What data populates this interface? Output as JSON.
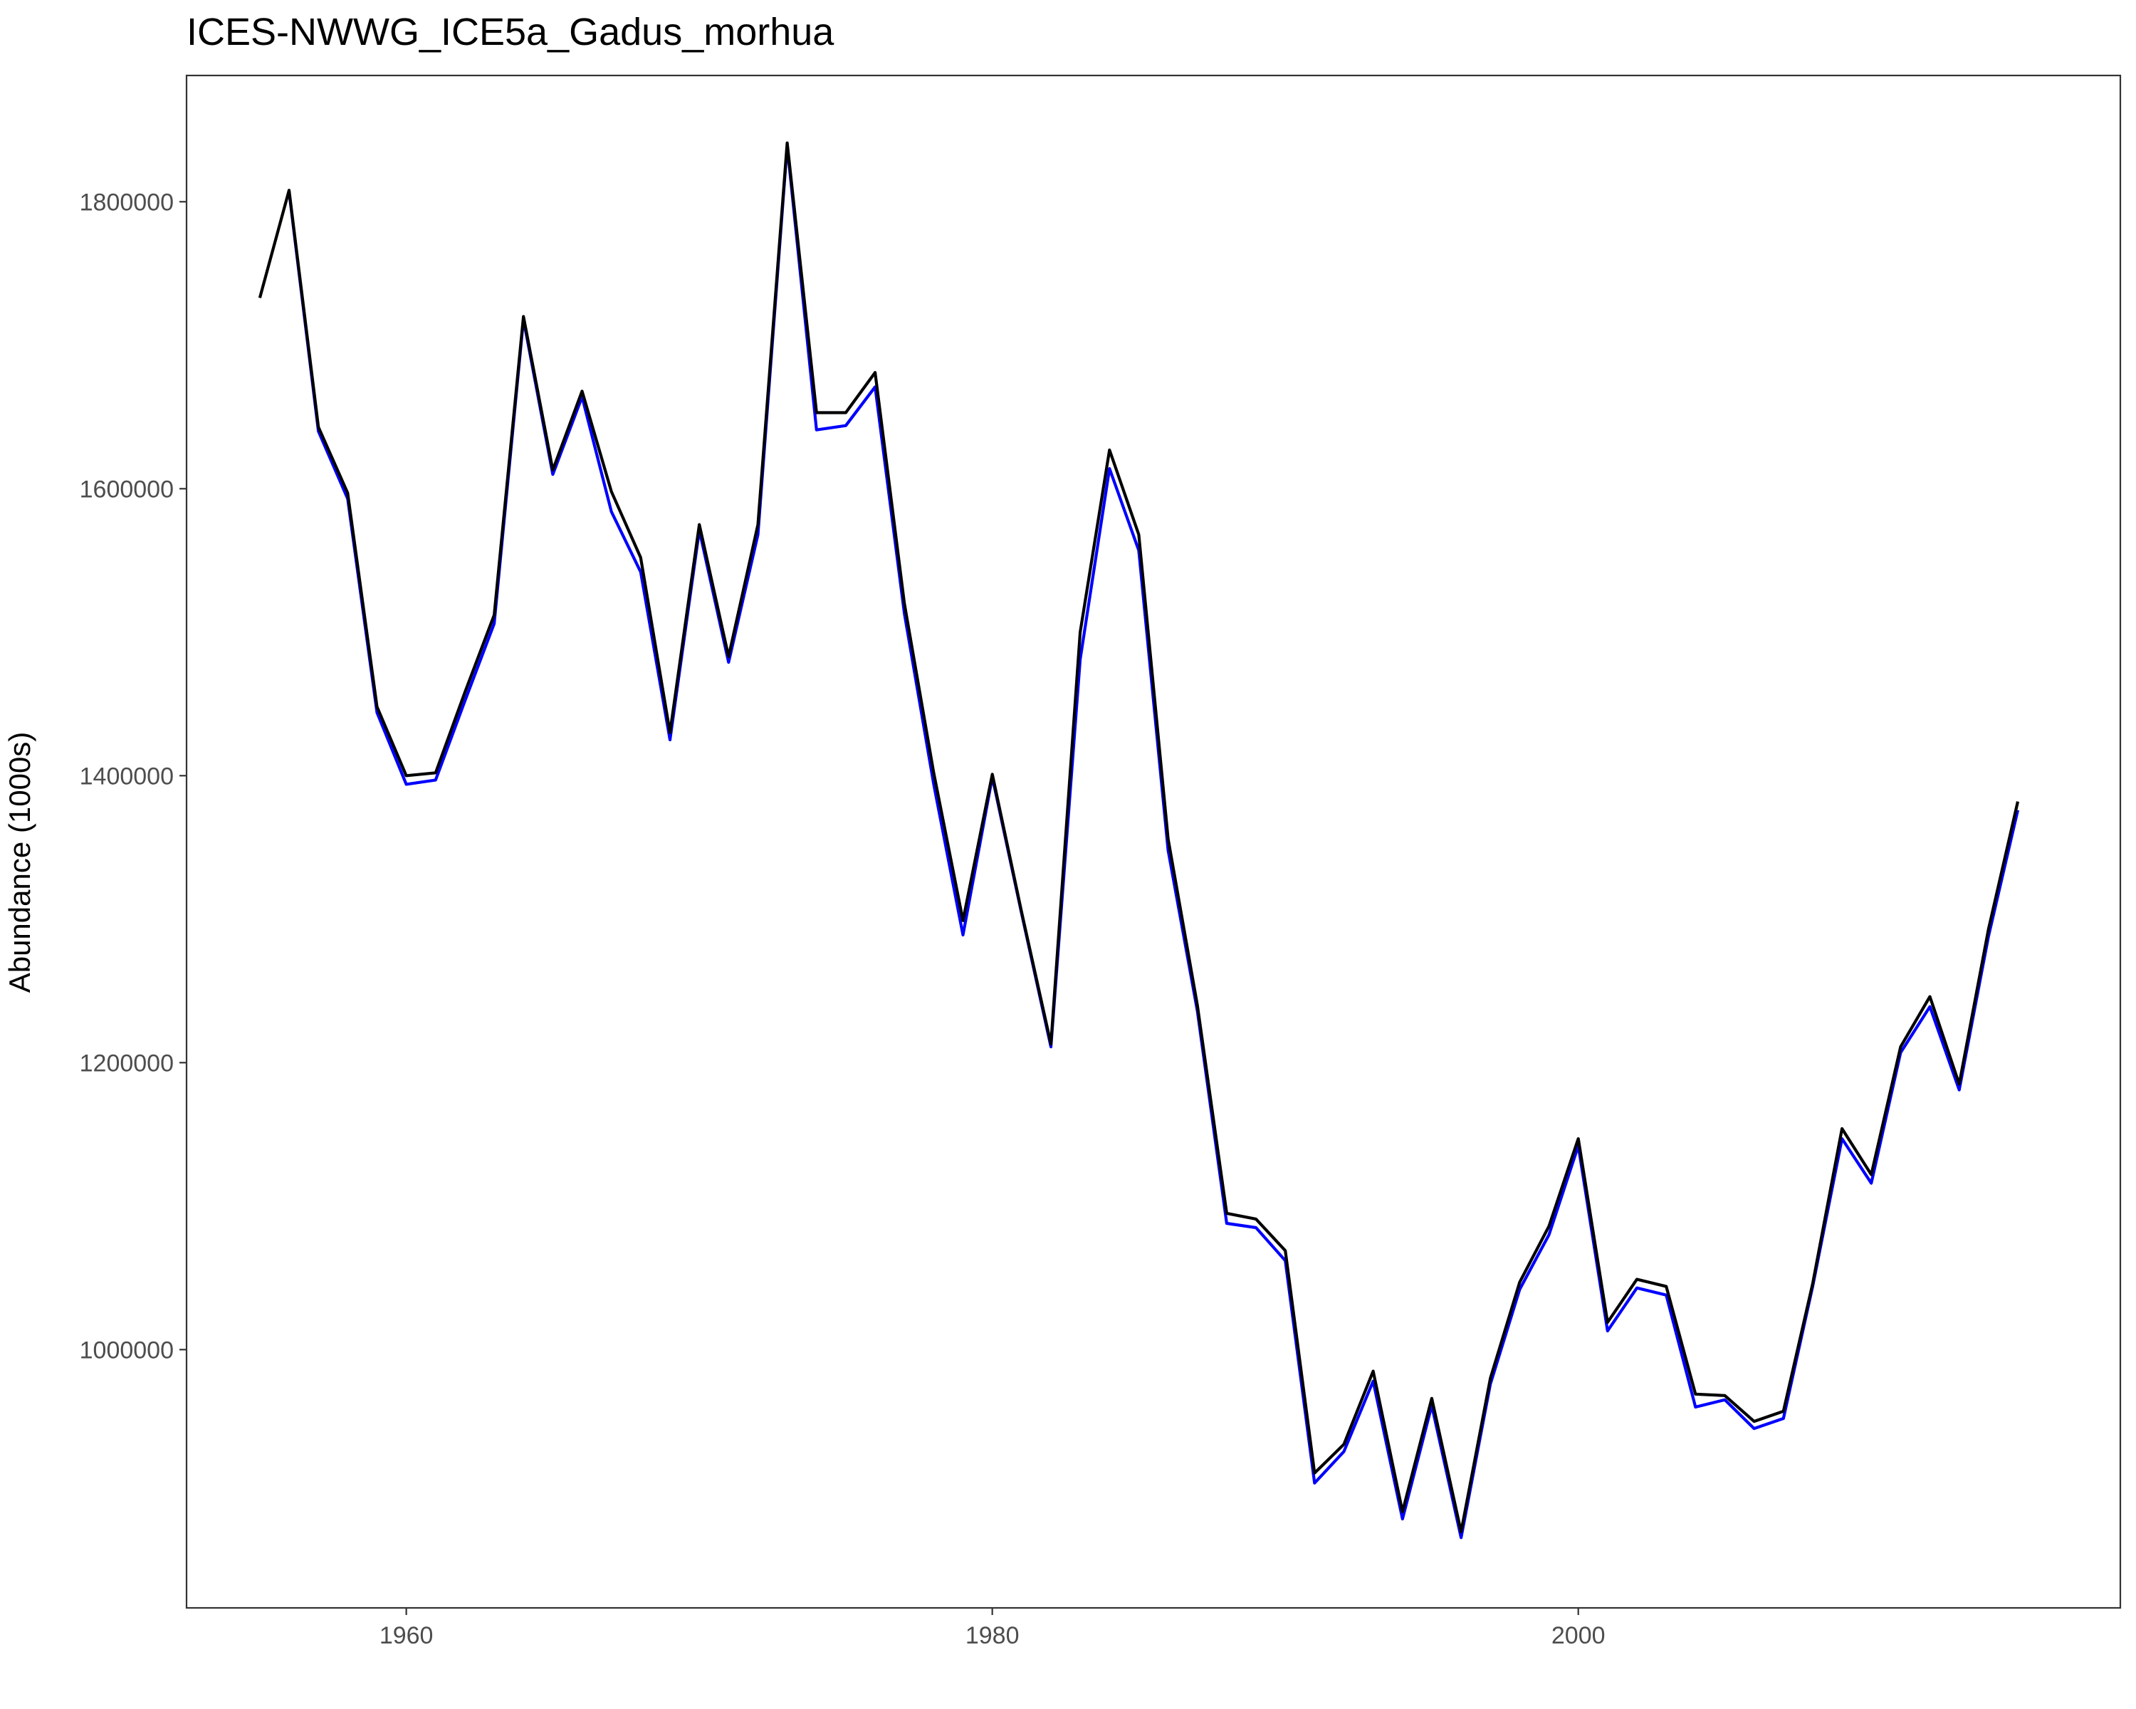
{
  "chart_data": {
    "type": "line",
    "title": "ICES-NWWG_ICE5a_Gadus_morhua",
    "xlabel": "",
    "ylabel": "Abundance (1000s)",
    "xlim": [
      1952.5,
      2018.5
    ],
    "ylim": [
      820000,
      1888000
    ],
    "x_ticks": [
      1960,
      1980,
      2000
    ],
    "y_ticks": [
      1000000,
      1200000,
      1400000,
      1600000,
      1800000
    ],
    "grid": false,
    "legend": "none",
    "x": [
      1955,
      1956,
      1957,
      1958,
      1959,
      1960,
      1961,
      1962,
      1963,
      1964,
      1965,
      1966,
      1967,
      1968,
      1969,
      1970,
      1971,
      1972,
      1973,
      1974,
      1975,
      1976,
      1977,
      1978,
      1979,
      1980,
      1981,
      1982,
      1983,
      1984,
      1985,
      1986,
      1987,
      1988,
      1989,
      1990,
      1991,
      1992,
      1993,
      1994,
      1995,
      1996,
      1997,
      1998,
      1999,
      2000,
      2001,
      2002,
      2003,
      2004,
      2005,
      2006,
      2007,
      2008,
      2009,
      2010,
      2011,
      2012,
      2013,
      2014,
      2015
    ],
    "series": [
      {
        "color": "#0000ff",
        "values": [
          null,
          1807000,
          1640000,
          1593000,
          1444000,
          1394000,
          1397000,
          1452000,
          1506000,
          1718000,
          1610000,
          1664000,
          1584000,
          1542000,
          1425000,
          1571000,
          1479000,
          1568000,
          1839000,
          1641000,
          1644000,
          1671000,
          1513000,
          1394000,
          1289000,
          1399000,
          1304000,
          1211000,
          1481000,
          1614000,
          1557000,
          1348000,
          1236000,
          1088000,
          1085000,
          1062000,
          907000,
          929000,
          978000,
          882000,
          961000,
          869000,
          976000,
          1042000,
          1080000,
          1142000,
          1013000,
          1043000,
          1038000,
          960000,
          965000,
          945000,
          952000,
          1044000,
          1147000,
          1116000,
          1207000,
          1239000,
          1181000,
          1288000,
          1376000
        ]
      },
      {
        "color": "#000000",
        "values": [
          1733000,
          1808000,
          1643000,
          1597000,
          1448000,
          1400000,
          1402000,
          1458000,
          1512000,
          1720000,
          1613000,
          1668000,
          1598000,
          1552000,
          1430000,
          1575000,
          1483000,
          1575000,
          1841000,
          1653000,
          1653000,
          1681000,
          1520000,
          1402000,
          1299000,
          1401000,
          1305000,
          1213000,
          1500000,
          1627000,
          1568000,
          1356000,
          1240000,
          1095000,
          1091000,
          1069000,
          914000,
          934000,
          985000,
          887000,
          966000,
          873000,
          980000,
          1047000,
          1086000,
          1147000,
          1019000,
          1049000,
          1044000,
          969000,
          968000,
          950000,
          957000,
          1046000,
          1154000,
          1122000,
          1211000,
          1246000,
          1185000,
          1293000,
          1382000
        ]
      }
    ]
  }
}
